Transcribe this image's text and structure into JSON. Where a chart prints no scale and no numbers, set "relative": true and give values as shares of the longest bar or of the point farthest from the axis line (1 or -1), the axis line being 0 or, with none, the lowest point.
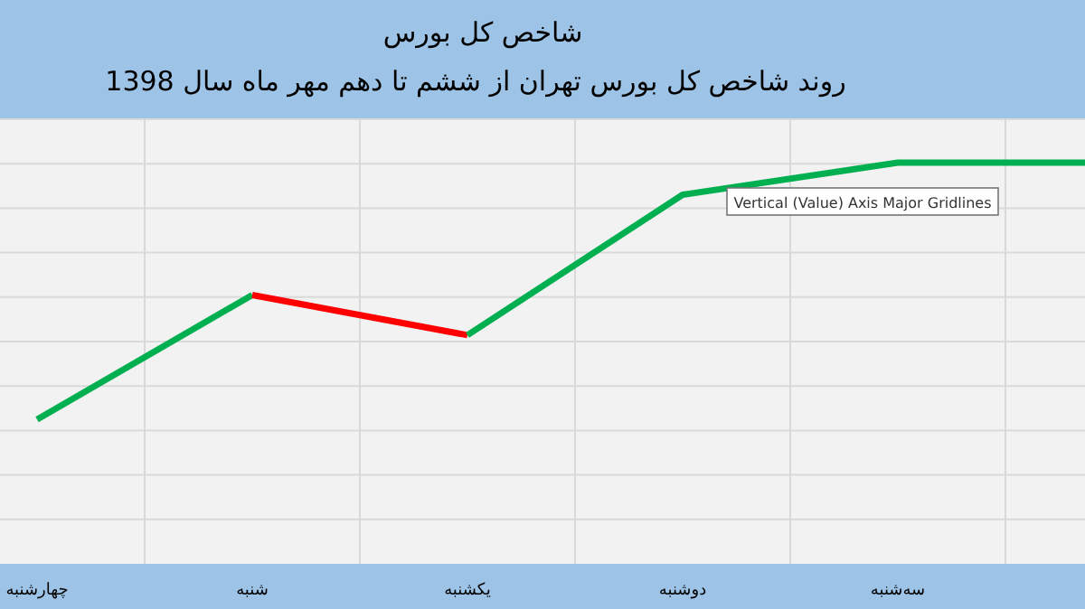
{
  "chart_data": {
    "type": "line",
    "title": "شاخص کل بورس",
    "subtitle": "روند شاخص کل بورس تهران از ششم تا دهم مهر ماه سال 1398",
    "categories": [
      "چهارشنبه",
      "شنبه",
      "یکشنبه",
      "دوشنبه",
      "سه‌شنبه",
      null
    ],
    "relative": true,
    "series": [
      {
        "color": "#00b050",
        "values": [
          0.36,
          0.67,
          null,
          null,
          null,
          null
        ]
      },
      {
        "color": "#ff0000",
        "values": [
          null,
          0.67,
          0.57,
          null,
          null,
          null
        ]
      },
      {
        "color": "#00b050",
        "values": [
          null,
          null,
          0.57,
          0.92,
          1,
          1
        ]
      }
    ],
    "grid": true,
    "marker": "none",
    "annotations": [
      "Vertical (Value) Axis Major Gridlines"
    ]
  }
}
